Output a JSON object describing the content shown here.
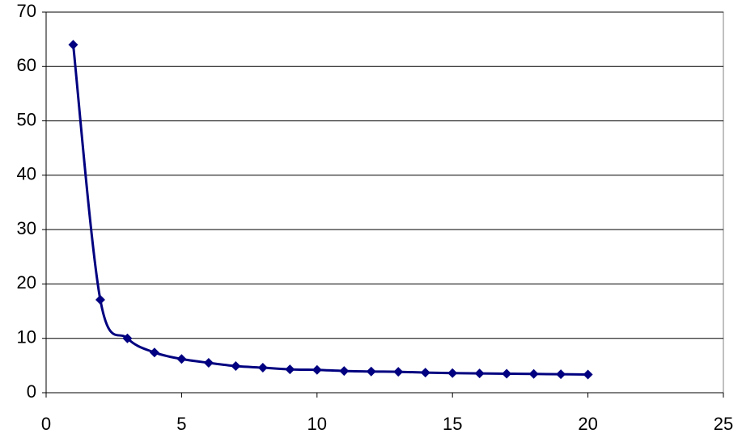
{
  "chart_data": {
    "type": "line",
    "smooth": true,
    "grid": true,
    "color": "#000080",
    "x": [
      1,
      2,
      3,
      4,
      5,
      6,
      7,
      8,
      9,
      10,
      11,
      12,
      13,
      14,
      15,
      16,
      17,
      18,
      19,
      20
    ],
    "values": [
      64,
      17.1,
      10,
      7.4,
      6.2,
      5.5,
      4.9,
      4.6,
      4.3,
      4.2,
      4.0,
      3.9,
      3.85,
      3.7,
      3.6,
      3.55,
      3.5,
      3.45,
      3.4,
      3.35
    ],
    "xlim": [
      0,
      25
    ],
    "xticks": [
      0,
      5,
      10,
      15,
      20,
      25
    ],
    "ylim": [
      0,
      70
    ],
    "yticks": [
      0,
      10,
      20,
      30,
      40,
      50,
      60,
      70
    ]
  }
}
